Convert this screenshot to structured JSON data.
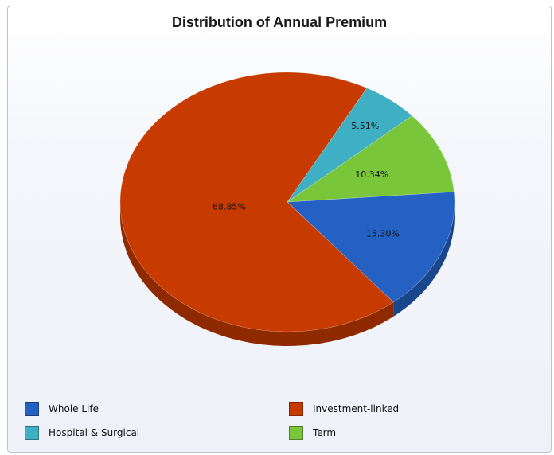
{
  "chart_data": {
    "type": "pie",
    "title": "Distribution of Annual Premium",
    "slices": [
      {
        "name": "Whole Life",
        "value": 15.3,
        "label": "15.30%",
        "color": "#2461c2"
      },
      {
        "name": "Investment-linked",
        "value": 68.85,
        "label": "68.85%",
        "color": "#c73a00"
      },
      {
        "name": "Hospital & Surgical",
        "value": 5.51,
        "label": "5.51%",
        "color": "#3fb0c4"
      },
      {
        "name": "Term",
        "value": 10.34,
        "label": "10.34%",
        "color": "#79c63a"
      }
    ],
    "legend_position": "bottom",
    "style": "3d"
  }
}
